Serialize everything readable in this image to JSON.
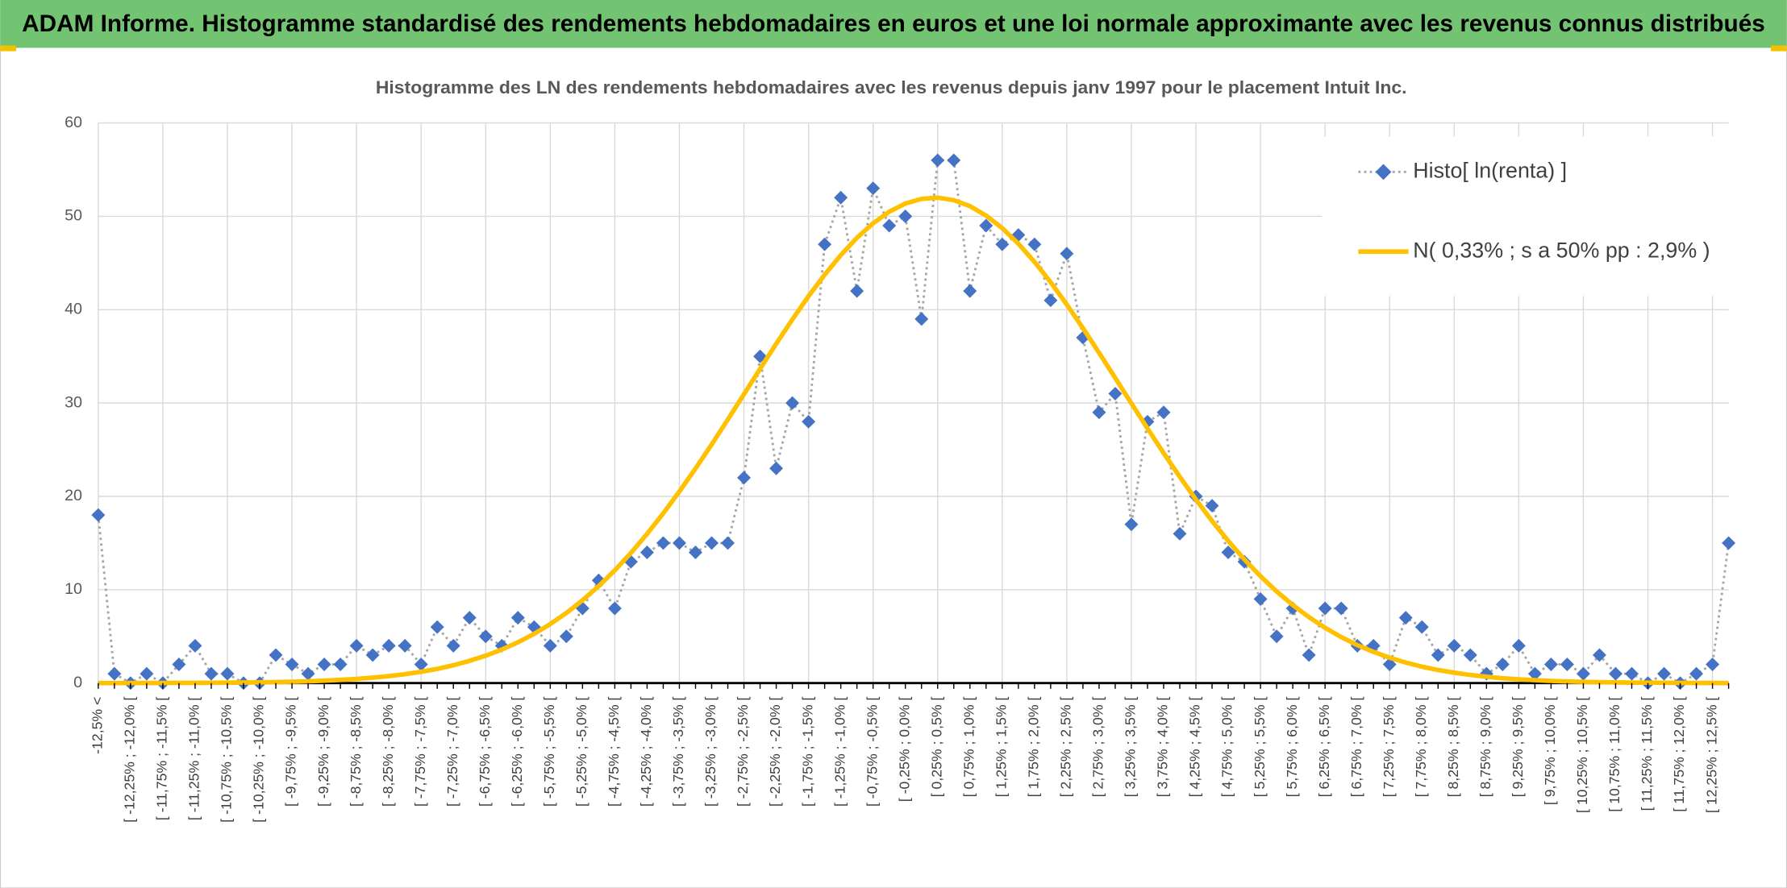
{
  "header": {
    "title": "ADAM Informe. Histogramme standardisé des rendements hebdomadaires en euros et une loi normale approximante avec les revenus connus distribués"
  },
  "chart_data": {
    "type": "line",
    "title": "Histogramme des LN des rendements hebdomadaires avec les revenus depuis janv 1997 pour le placement Intuit Inc.",
    "categories": [
      "-12,5% <",
      null,
      "[ -12,25% ; -12,0% [",
      null,
      "[ -11,75% ; -11,5% [",
      null,
      "[ -11,25% ; -11,0% [",
      null,
      "[ -10,75% ; -10,5% [",
      null,
      "[ -10,25% ; -10,0% [",
      null,
      "[ -9,75% ; -9,5% [",
      null,
      "[ -9,25% ; -9,0% [",
      null,
      "[ -8,75% ; -8,5% [",
      null,
      "[ -8,25% ; -8,0% [",
      null,
      "[ -7,75% ; -7,5% [",
      null,
      "[ -7,25% ; -7,0% [",
      null,
      "[ -6,75% ; -6,5% [",
      null,
      "[ -6,25% ; -6,0% [",
      null,
      "[ -5,75% ; -5,5% [",
      null,
      "[ -5,25% ; -5,0% [",
      null,
      "[ -4,75% ; -4,5% [",
      null,
      "[ -4,25% ; -4,0% [",
      null,
      "[ -3,75% ; -3,5% [",
      null,
      "[ -3,25% ; -3,0% [",
      null,
      "[ -2,75% ; -2,5% [",
      null,
      "[ -2,25% ; -2,0% [",
      null,
      "[ -1,75% ; -1,5% [",
      null,
      "[ -1,25% ; -1,0% [",
      null,
      "[ -0,75% ; -0,5% [",
      null,
      "[ -0,25% ; 0,0% [",
      null,
      "[ 0,25% ; 0,5% [",
      null,
      "[ 0,75% ; 1,0% [",
      null,
      "[ 1,25% ; 1,5% [",
      null,
      "[ 1,75% ; 2,0% [",
      null,
      "[ 2,25% ; 2,5% [",
      null,
      "[ 2,75% ; 3,0% [",
      null,
      "[ 3,25% ; 3,5% [",
      null,
      "[ 3,75% ; 4,0% [",
      null,
      "[ 4,25% ; 4,5% [",
      null,
      "[ 4,75% ; 5,0% [",
      null,
      "[ 5,25% ; 5,5% [",
      null,
      "[ 5,75% ; 6,0% [",
      null,
      "[ 6,25% ; 6,5% [",
      null,
      "[ 6,75% ; 7,0% [",
      null,
      "[ 7,25% ; 7,5% [",
      null,
      "[ 7,75% ; 8,0% [",
      null,
      "[ 8,25% ; 8,5% [",
      null,
      "[ 8,75% ; 9,0% [",
      null,
      "[ 9,25% ; 9,5% [",
      null,
      "[ 9,75% ; 10,0% [",
      null,
      "[ 10,25% ; 10,5% [",
      null,
      "[ 10,75% ; 11,0% [",
      null,
      "[ 11,25% ; 11,5% [",
      null,
      "[ 11,75% ; 12,0% [",
      null,
      "[ 12,25% ; 12,5% [",
      null
    ],
    "series": [
      {
        "name": "Histo[ ln(renta) ]",
        "color": "#4472c4",
        "line_color": "#a5a5a5",
        "marker": "diamond",
        "line_style": "dotted",
        "values": [
          18,
          1,
          0,
          1,
          0,
          2,
          4,
          1,
          1,
          0,
          0,
          3,
          2,
          1,
          2,
          2,
          4,
          3,
          4,
          4,
          2,
          6,
          4,
          7,
          5,
          4,
          7,
          6,
          4,
          5,
          8,
          11,
          8,
          13,
          14,
          15,
          15,
          14,
          15,
          15,
          22,
          35,
          23,
          30,
          28,
          47,
          52,
          42,
          53,
          49,
          50,
          39,
          56,
          56,
          42,
          49,
          47,
          48,
          47,
          41,
          46,
          37,
          29,
          31,
          17,
          28,
          29,
          16,
          20,
          19,
          14,
          13,
          9,
          5,
          8,
          3,
          8,
          8,
          4,
          4,
          2,
          7,
          6,
          3,
          4,
          3,
          1,
          2,
          4,
          1,
          2,
          2,
          1,
          3,
          1,
          1,
          0,
          1,
          0,
          1,
          2,
          15
        ]
      },
      {
        "name": "N( 0,33% ; s a 50% pp : 2,9% )",
        "color": "#ffc000",
        "marker": "none",
        "line_style": "solid",
        "values": [
          0,
          0,
          0.01,
          0.01,
          0.01,
          0.02,
          0.02,
          0.03,
          0.04,
          0.06,
          0.08,
          0.11,
          0.14,
          0.19,
          0.26,
          0.34,
          0.44,
          0.58,
          0.74,
          0.95,
          1.21,
          1.52,
          1.91,
          2.38,
          2.93,
          3.59,
          4.37,
          5.27,
          6.32,
          7.51,
          8.87,
          10.38,
          12.08,
          13.94,
          15.98,
          18.18,
          20.52,
          22.99,
          25.56,
          28.23,
          30.94,
          33.66,
          36.35,
          38.95,
          41.44,
          43.74,
          45.84,
          47.7,
          49.25,
          50.49,
          51.37,
          51.87,
          52,
          51.73,
          51.09,
          50.08,
          48.73,
          47.07,
          45.12,
          42.94,
          40.55,
          38.02,
          35.38,
          32.68,
          29.97,
          27.27,
          24.63,
          22.09,
          19.66,
          17.36,
          15.23,
          13.25,
          11.45,
          9.82,
          8.36,
          7.07,
          5.92,
          4.93,
          4.07,
          3.34,
          2.72,
          2.2,
          1.76,
          1.4,
          1.11,
          0.87,
          0.68,
          0.52,
          0.4,
          0.31,
          0.23,
          0.17,
          0.13,
          0.1,
          0.07,
          0.05,
          0.04,
          0.03,
          0.02,
          0.01,
          0.01,
          0
        ]
      }
    ],
    "ylim": [
      0,
      60
    ],
    "yticks": [
      0,
      10,
      20,
      30,
      40,
      50,
      60
    ],
    "grid": true,
    "legend": "top-right"
  }
}
